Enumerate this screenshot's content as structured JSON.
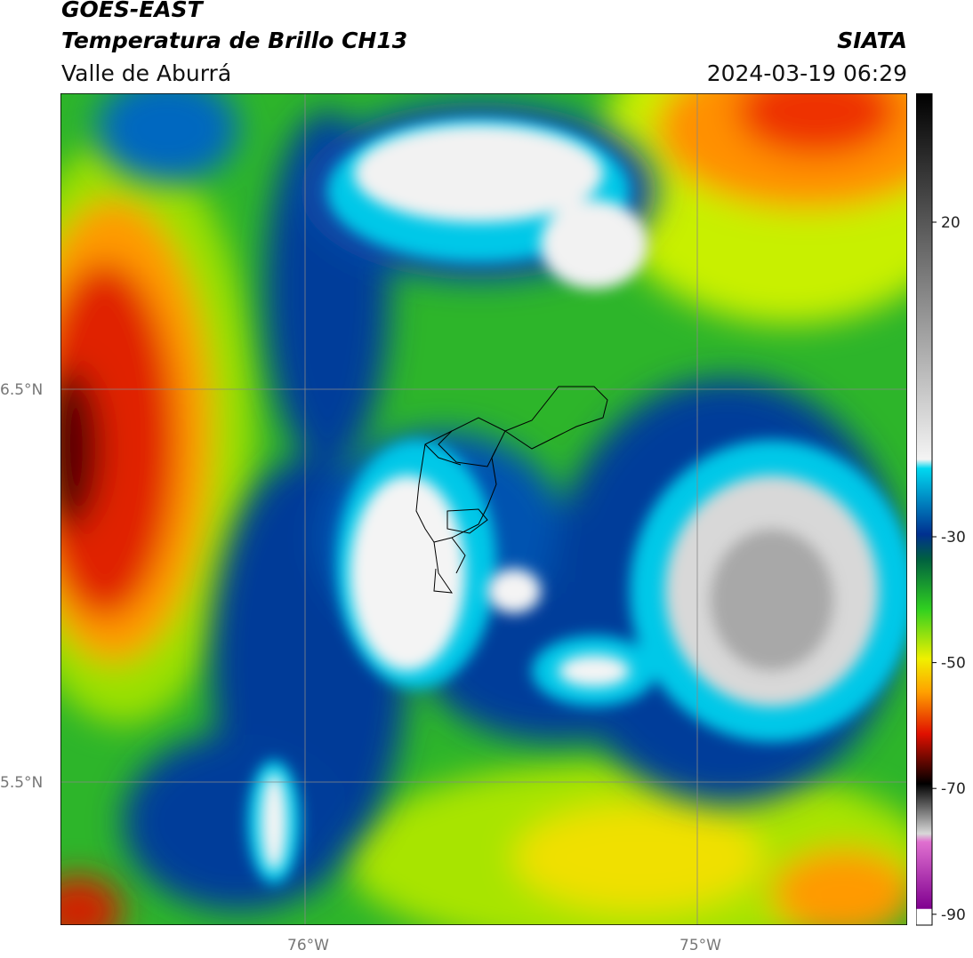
{
  "header": {
    "satellite": "GOES-EAST",
    "product": "Temperatura de Brillo CH13",
    "region": "Valle de Aburrá",
    "agency": "SIATA",
    "datetime": "2024-03-19 06:29"
  },
  "map": {
    "lat_ticks": [
      "6.5°N",
      "5.5°N"
    ],
    "lon_ticks": [
      "76°W",
      "75°W"
    ]
  },
  "colorbar": {
    "ticks": [
      20,
      -30,
      -50,
      -70,
      -90
    ]
  }
}
